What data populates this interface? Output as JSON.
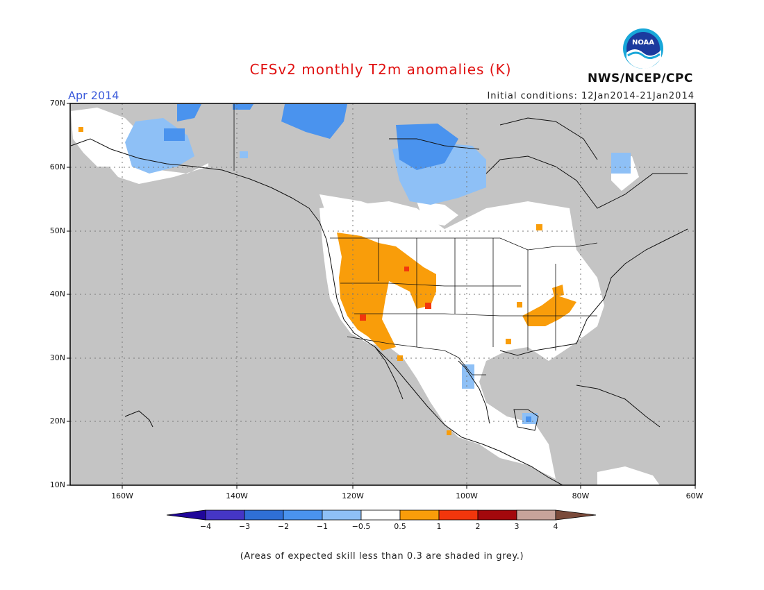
{
  "title": "CFSv2 monthly T2m anomalies (K)",
  "month_label": "Apr 2014",
  "initial_conditions": "Initial conditions: 12Jan2014-21Jan2014",
  "agency": "NWS/NCEP/CPC",
  "logo_text": "NOAA",
  "lat_ticks": [
    "70N",
    "60N",
    "50N",
    "40N",
    "30N",
    "20N",
    "10N"
  ],
  "lon_ticks": [
    "160W",
    "140W",
    "120W",
    "100W",
    "80W",
    "60W"
  ],
  "colorbar": {
    "labels": [
      "−4",
      "−3",
      "−2",
      "−1",
      "−0.5",
      "0.5",
      "1",
      "2",
      "3",
      "4"
    ],
    "colors": [
      "#20069a",
      "#4536c6",
      "#2f6fd6",
      "#4a93ee",
      "#8ec0f6",
      "#ffffff",
      "#f99d0a",
      "#f2360c",
      "#a3080c",
      "#c7a39a",
      "#7a4a3a"
    ]
  },
  "note": "(Areas of expected skill less than 0.3 are shaded in grey.)",
  "colors": {
    "grey_mask": "#c4c4c4",
    "land_white": "#ffffff",
    "title_red": "#e01010",
    "month_blue": "#3b5bdb"
  }
}
